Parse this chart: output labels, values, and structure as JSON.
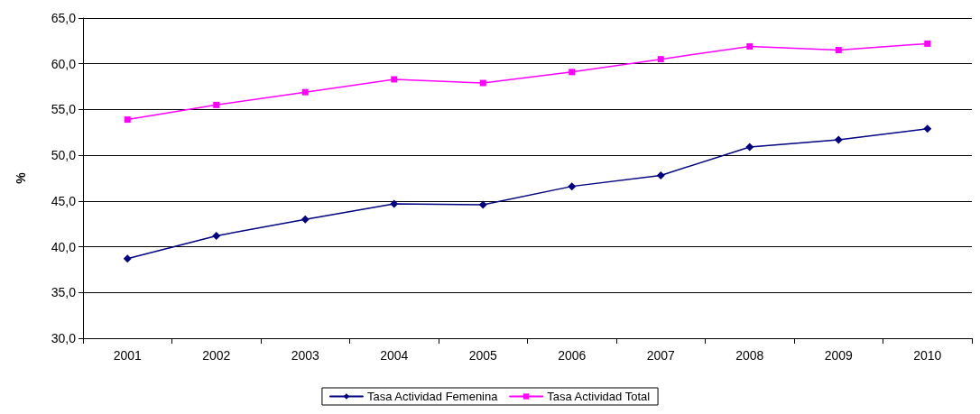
{
  "chart_data": {
    "type": "line",
    "ylabel": "%",
    "categories": [
      "2001",
      "2002",
      "2003",
      "2004",
      "2005",
      "2006",
      "2007",
      "2008",
      "2009",
      "2010"
    ],
    "series": [
      {
        "name": "Tasa Actividad Femenina",
        "color": "#000080",
        "marker": "diamond",
        "values": [
          38.7,
          41.2,
          43.0,
          44.7,
          44.6,
          46.6,
          47.8,
          50.9,
          51.7,
          52.9
        ]
      },
      {
        "name": "Tasa Actividad Total",
        "color": "#ff00ff",
        "marker": "square",
        "values": [
          53.9,
          55.5,
          56.9,
          58.3,
          57.9,
          59.1,
          60.5,
          61.9,
          61.5,
          62.2
        ]
      }
    ],
    "ylim": [
      30,
      65
    ],
    "yticks": [
      {
        "value": 30,
        "label": "30,0"
      },
      {
        "value": 35,
        "label": "35,0"
      },
      {
        "value": 40,
        "label": "40,0"
      },
      {
        "value": 45,
        "label": "45,0"
      },
      {
        "value": 50,
        "label": "50,0"
      },
      {
        "value": 55,
        "label": "55,0"
      },
      {
        "value": 60,
        "label": "60,0"
      },
      {
        "value": 65,
        "label": "65,0"
      }
    ],
    "grid": "y",
    "legend": "bottom",
    "line_style": "solid"
  }
}
